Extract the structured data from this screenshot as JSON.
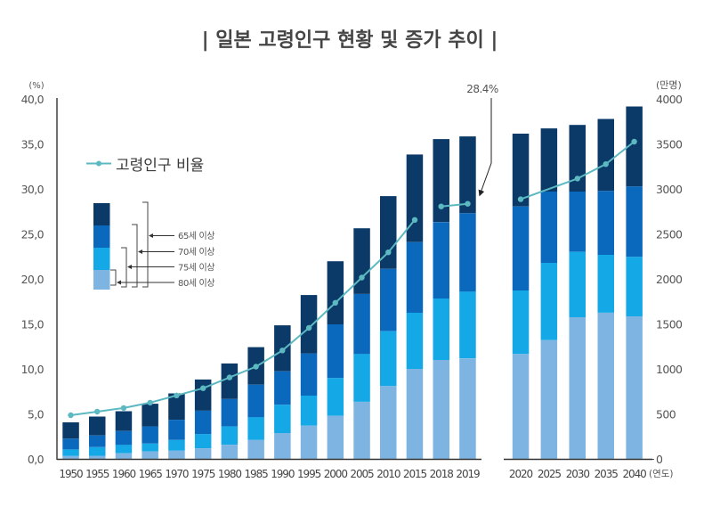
{
  "title": "| 일본 고령인구 현황 및 증가 추이 |",
  "units": {
    "left": "(%)",
    "right": "(만명)",
    "x": "(연도)"
  },
  "legend": {
    "line_label": "고령인구 비율",
    "bar_labels": [
      "65세 이상",
      "70세 이상",
      "75세 이상",
      "80세 이상"
    ]
  },
  "annotation": {
    "text": "28.4%",
    "target_category": "2019"
  },
  "colors": {
    "age65": "#0b3a68",
    "age70": "#0b69bd",
    "age75": "#14a8e6",
    "age80": "#7eb4e2",
    "ratio_line": "#5cb9c2",
    "axis": "#333333"
  },
  "chart_data": {
    "type": "bar",
    "secondary_type": "line",
    "stacking": "nested-cumulative",
    "title": "일본 고령인구 현황 및 증가 추이",
    "xlabel": "(연도)",
    "ylabel_left": "(%)",
    "ylabel_right": "(만명)",
    "panels": [
      [
        "1950",
        "1955",
        "1960",
        "1965",
        "1970",
        "1975",
        "1980",
        "1985",
        "1990",
        "1995",
        "2000",
        "2005",
        "2010",
        "2015",
        "2018",
        "2019"
      ],
      [
        "2020",
        "2025",
        "2030",
        "2035",
        "2040"
      ]
    ],
    "categories": [
      "1950",
      "1955",
      "1960",
      "1965",
      "1970",
      "1975",
      "1980",
      "1985",
      "1990",
      "1995",
      "2000",
      "2005",
      "2010",
      "2015",
      "2018",
      "2019",
      "2020",
      "2025",
      "2030",
      "2035",
      "2040"
    ],
    "series": [
      {
        "name": "65세 이상",
        "unit": "만명",
        "axis": "right",
        "color_key": "age65",
        "values": [
          411,
          475,
          535,
          618,
          733,
          887,
          1065,
          1247,
          1489,
          1826,
          2201,
          2567,
          2925,
          3387,
          3558,
          3588,
          3619,
          3677,
          3716,
          3782,
          3921
        ]
      },
      {
        "name": "70세 이상",
        "unit": "만명",
        "axis": "right",
        "color_key": "age70",
        "values": [
          230,
          265,
          315,
          365,
          440,
          540,
          670,
          830,
          978,
          1176,
          1500,
          1837,
          2117,
          2414,
          2636,
          2735,
          2810,
          2975,
          2975,
          2982,
          3032
        ]
      },
      {
        "name": "75세 이상",
        "unit": "만명",
        "axis": "right",
        "color_key": "age75",
        "values": [
          110,
          135,
          160,
          175,
          215,
          280,
          365,
          467,
          606,
          708,
          903,
          1170,
          1424,
          1629,
          1787,
          1863,
          1876,
          2183,
          2305,
          2272,
          2250
        ]
      },
      {
        "name": "80세 이상",
        "unit": "만명",
        "axis": "right",
        "color_key": "age80",
        "values": [
          37,
          40,
          67,
          87,
          96,
          123,
          162,
          215,
          292,
          374,
          483,
          639,
          814,
          1005,
          1104,
          1121,
          1170,
          1325,
          1579,
          1629,
          1589
        ]
      }
    ],
    "line": {
      "name": "고령인구 비율",
      "unit": "%",
      "axis": "left",
      "values": [
        4.9,
        5.3,
        5.7,
        6.3,
        7.1,
        7.9,
        9.1,
        10.3,
        12.1,
        14.6,
        17.4,
        20.2,
        23.0,
        26.6,
        28.1,
        28.4,
        28.9,
        null,
        31.2,
        32.8,
        35.3
      ],
      "groups": [
        [
          "1950",
          "1955",
          "1960",
          "1965",
          "1970",
          "1975",
          "1980",
          "1985",
          "1990",
          "1995",
          "2000",
          "2005",
          "2010",
          "2015"
        ],
        [
          "2018",
          "2019"
        ],
        [
          "2020",
          "2025",
          "2030",
          "2035",
          "2040"
        ]
      ]
    },
    "y_left": {
      "range": [
        0,
        40
      ],
      "ticks": [
        0,
        5,
        10,
        15,
        20,
        25,
        30,
        35,
        40
      ],
      "tick_labels": [
        "0,0",
        "5,0",
        "10,0",
        "15,0",
        "20,0",
        "25,0",
        "30,0",
        "35,0",
        "40,0"
      ]
    },
    "y_right": {
      "range": [
        0,
        4000
      ],
      "ticks": [
        0,
        500,
        1000,
        1500,
        2000,
        2500,
        3000,
        3500,
        4000
      ],
      "tick_labels": [
        "0",
        "500",
        "1000",
        "1500",
        "2000",
        "2500",
        "3000",
        "3500",
        "4000"
      ]
    },
    "grid": false,
    "legend_position": "top-left"
  }
}
